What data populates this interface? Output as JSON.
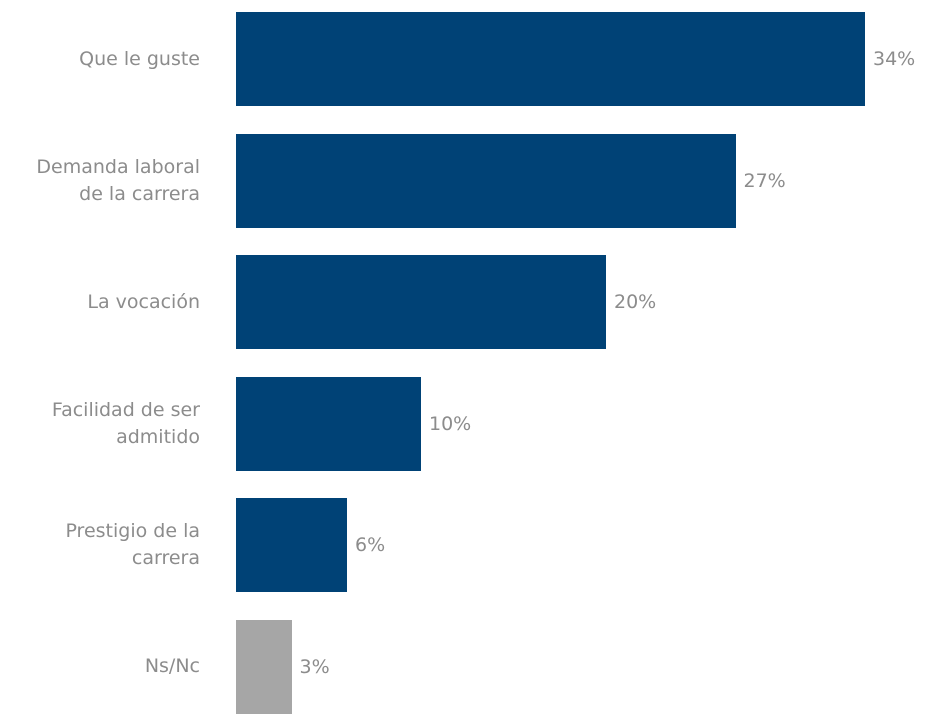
{
  "chart_data": {
    "type": "bar",
    "orientation": "horizontal",
    "categories": [
      [
        "Que le guste"
      ],
      [
        "Demanda laboral",
        "de la carrera"
      ],
      [
        "La vocación"
      ],
      [
        "Facilidad de ser",
        "admitido"
      ],
      [
        "Prestigio de la",
        "carrera"
      ],
      [
        "Ns/Nc"
      ]
    ],
    "values": [
      34,
      27,
      20,
      10,
      6,
      3
    ],
    "value_labels": [
      "34%",
      "27%",
      "20%",
      "10%",
      "6%",
      "3%"
    ],
    "unit": "%",
    "bar_colors": [
      "#004276",
      "#004276",
      "#004276",
      "#004276",
      "#004276",
      "#a6a6a6"
    ],
    "label_color": "#8c8c8c",
    "xlim": [
      0,
      34
    ],
    "grid": false,
    "legend": "none",
    "title": "",
    "xlabel": "",
    "ylabel": ""
  }
}
